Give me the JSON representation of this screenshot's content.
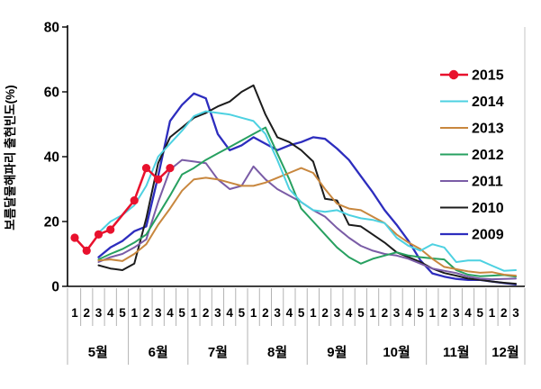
{
  "chart_data": {
    "type": "line",
    "title": "",
    "ylabel": "보름달물해파리 출현빈도(%)",
    "ylim": [
      0,
      80
    ],
    "yticks": [
      0,
      20,
      40,
      60,
      80
    ],
    "grid": false,
    "legend_position": "inside-right",
    "x_axis": {
      "months": [
        {
          "label": "5월",
          "weeks": [
            "1",
            "2",
            "3",
            "4",
            "5"
          ]
        },
        {
          "label": "6월",
          "weeks": [
            "1",
            "2",
            "3",
            "4",
            "5"
          ]
        },
        {
          "label": "7월",
          "weeks": [
            "1",
            "2",
            "3",
            "4",
            "5"
          ]
        },
        {
          "label": "8월",
          "weeks": [
            "1",
            "2",
            "3",
            "4",
            "5"
          ]
        },
        {
          "label": "9월",
          "weeks": [
            "1",
            "2",
            "3",
            "4",
            "5"
          ]
        },
        {
          "label": "10월",
          "weeks": [
            "1",
            "2",
            "3",
            "4",
            "5"
          ]
        },
        {
          "label": "11월",
          "weeks": [
            "1",
            "2",
            "3",
            "4",
            "5"
          ]
        },
        {
          "label": "12월",
          "weeks": [
            "1",
            "2",
            "3"
          ]
        }
      ]
    },
    "series": [
      {
        "name": "2015",
        "color": "#e8112d",
        "marker": "circle",
        "width": 2.5,
        "values": [
          15,
          11,
          16,
          17.5,
          null,
          26.5,
          36.5,
          33,
          36.5,
          null,
          null,
          null,
          null,
          null,
          null,
          null,
          null,
          null,
          null,
          null,
          null,
          null,
          null,
          null,
          null,
          null,
          null,
          null,
          null,
          null,
          null,
          null,
          null,
          null,
          null,
          null,
          null,
          null
        ]
      },
      {
        "name": "2014",
        "color": "#4dd1e1",
        "marker": "none",
        "width": 2,
        "values": [
          null,
          null,
          16.5,
          20,
          22,
          25,
          31,
          40,
          44,
          48,
          52.5,
          54,
          53.5,
          53,
          52,
          51,
          47,
          39,
          30,
          26,
          23.5,
          23,
          23.5,
          22,
          21,
          20.5,
          19.5,
          15,
          12.5,
          11,
          13,
          12,
          7.5,
          8,
          8,
          6.4,
          4.8,
          5
        ]
      },
      {
        "name": "2013",
        "color": "#c8873e",
        "marker": "none",
        "width": 2,
        "values": [
          null,
          null,
          8,
          8.3,
          7.8,
          10,
          13,
          19,
          24,
          29.5,
          33,
          33.5,
          33,
          32,
          31,
          31,
          32,
          33.5,
          35,
          36.5,
          35,
          30,
          25.5,
          24,
          23.5,
          21.5,
          19.5,
          16,
          13.5,
          11.5,
          8.5,
          6,
          5.3,
          4.6,
          4.2,
          4.4,
          3.6,
          3.3
        ]
      },
      {
        "name": "2012",
        "color": "#27a060",
        "marker": "none",
        "width": 2,
        "values": [
          null,
          null,
          8.3,
          10,
          11.5,
          13.5,
          16,
          22,
          28,
          34.5,
          36.5,
          39,
          41,
          43,
          45,
          47,
          49,
          41,
          33,
          24,
          20,
          16,
          12,
          9,
          7,
          8.5,
          9.5,
          10.5,
          9.5,
          9,
          8.6,
          8.3,
          5,
          3.6,
          3.1,
          3.3,
          3.5,
          3
        ]
      },
      {
        "name": "2011",
        "color": "#7a5ca6",
        "marker": "none",
        "width": 2,
        "values": [
          null,
          null,
          7.5,
          9,
          10,
          12,
          14.5,
          26,
          36,
          39,
          38.5,
          38,
          33,
          30,
          31,
          37,
          33,
          30,
          28,
          26,
          23.5,
          21.5,
          18,
          15,
          12.5,
          11,
          10,
          9.5,
          8.5,
          7,
          5.5,
          4.8,
          4.1,
          3,
          2.4,
          2.2,
          2.3,
          2.4
        ]
      },
      {
        "name": "2010",
        "color": "#1c1c1c",
        "marker": "none",
        "width": 2,
        "values": [
          null,
          null,
          6.5,
          5.5,
          5,
          7,
          21,
          38,
          46,
          49,
          52,
          53.5,
          55.5,
          57,
          60,
          62,
          53,
          46,
          44.5,
          42,
          38.5,
          27,
          26.5,
          19,
          18.5,
          16,
          13.5,
          10.5,
          9,
          7.5,
          5.5,
          4.1,
          3.3,
          2.4,
          2,
          1.5,
          1.1,
          0.8
        ]
      },
      {
        "name": "2009",
        "color": "#2d2dbe",
        "marker": "none",
        "width": 2.3,
        "values": [
          null,
          null,
          9,
          12,
          14,
          17,
          18.5,
          34,
          51,
          56,
          59.5,
          58,
          47,
          42,
          43.5,
          46,
          44,
          42,
          43.5,
          44.5,
          46,
          45.5,
          42.5,
          39,
          34,
          29,
          23.5,
          19,
          14,
          8,
          4,
          3,
          2.3,
          2,
          2,
          1.5,
          1,
          0.6
        ]
      }
    ],
    "axis_colors": {
      "axis_line": "#000000",
      "separator": "#b3b3b3",
      "plot_border": "#c6c6c6",
      "text": "#000000"
    }
  }
}
